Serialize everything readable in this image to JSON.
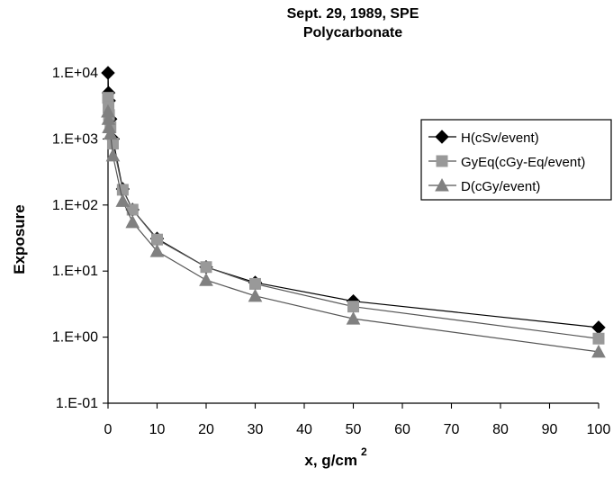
{
  "chart_data": {
    "type": "line",
    "title": "Sept. 29, 1989, SPE",
    "subtitle": "Polycarbonate",
    "xlabel": "x, g/cm",
    "xlabel_superscript": "2",
    "ylabel": "Exposure",
    "xlim": [
      0,
      100
    ],
    "ylim": [
      0.1,
      10000
    ],
    "y_scale": "log",
    "x_ticks": [
      "0",
      "10",
      "20",
      "30",
      "40",
      "50",
      "60",
      "70",
      "80",
      "90",
      "100"
    ],
    "y_ticks": [
      "1.E-01",
      "1.E+00",
      "1.E+01",
      "1.E+02",
      "1.E+03",
      "1.E+04"
    ],
    "grid": false,
    "legend_position": "right",
    "series": [
      {
        "name": "H(cSv/event)",
        "color": "#000000",
        "marker": "diamond",
        "x": [
          0,
          0.1,
          0.2,
          0.5,
          1,
          3,
          5,
          10,
          20,
          30,
          50,
          100
        ],
        "values": [
          10000,
          5000,
          3800,
          2000,
          1000,
          175,
          85,
          31,
          11.5,
          6.7,
          3.5,
          1.4
        ]
      },
      {
        "name": "GyEq(cGy-Eq/event)",
        "color": "#999999",
        "marker": "square",
        "x": [
          0,
          0.1,
          0.2,
          0.5,
          1,
          3,
          5,
          10,
          20,
          30,
          50,
          100
        ],
        "values": [
          4200,
          3000,
          2300,
          1500,
          850,
          170,
          85,
          30,
          11.5,
          6.4,
          2.9,
          0.95
        ]
      },
      {
        "name": "D(cGy/event)",
        "color": "#808080",
        "marker": "triangle",
        "x": [
          0,
          0.1,
          0.2,
          0.5,
          1,
          3,
          5,
          10,
          20,
          30,
          50,
          100
        ],
        "values": [
          2600,
          2000,
          1500,
          1200,
          560,
          115,
          55,
          20,
          7.3,
          4.2,
          1.9,
          0.6
        ]
      }
    ]
  }
}
